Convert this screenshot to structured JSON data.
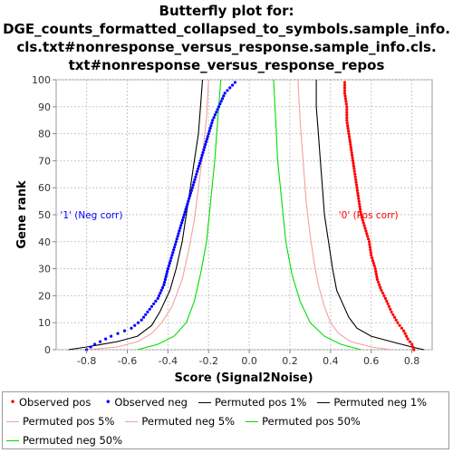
{
  "chart_data": {
    "type": "scatter",
    "title": [
      "Butterfly plot for:",
      "DGE_counts_formatted_collapsed_to_symbols.sample_info.",
      "cls.txt#nonresponse_versus_response.sample_info.cls.",
      "txt#nonresponse_versus_response_repos"
    ],
    "xlabel": "Score (Signal2Noise)",
    "ylabel": "Gene rank",
    "xlim": [
      -0.95,
      0.9
    ],
    "ylim": [
      0,
      100
    ],
    "x_ticks": [
      "-0.8",
      "-0.6",
      "-0.4",
      "-0.2",
      "0.0",
      "0.2",
      "0.4",
      "0.6",
      "0.8"
    ],
    "x_tick_values": [
      -0.8,
      -0.6,
      -0.4,
      -0.2,
      0.0,
      0.2,
      0.4,
      0.6,
      0.8
    ],
    "y_ticks": [
      "0",
      "10",
      "20",
      "30",
      "40",
      "50",
      "60",
      "70",
      "80",
      "90",
      "100"
    ],
    "y_tick_values": [
      0,
      10,
      20,
      30,
      40,
      50,
      60,
      70,
      80,
      90,
      100
    ],
    "grid": true,
    "annotations": [
      {
        "text": "'1' (Neg corr)",
        "x": -0.93,
        "y": 50,
        "color": "#0000ff"
      },
      {
        "text": "'0' (Pos corr)",
        "x": 0.44,
        "y": 50,
        "color": "#ff0000"
      }
    ],
    "series": [
      {
        "name": "Observed pos",
        "kind": "points",
        "color": "#ff0000",
        "points": [
          [
            0.81,
            0
          ],
          [
            0.8,
            2
          ],
          [
            0.78,
            4
          ],
          [
            0.76,
            7
          ],
          [
            0.73,
            10
          ],
          [
            0.7,
            14
          ],
          [
            0.67,
            19
          ],
          [
            0.65,
            22
          ],
          [
            0.63,
            26
          ],
          [
            0.62,
            30
          ],
          [
            0.6,
            35
          ],
          [
            0.59,
            40
          ],
          [
            0.57,
            45
          ],
          [
            0.55,
            50
          ],
          [
            0.54,
            55
          ],
          [
            0.53,
            60
          ],
          [
            0.52,
            65
          ],
          [
            0.51,
            70
          ],
          [
            0.5,
            75
          ],
          [
            0.49,
            80
          ],
          [
            0.48,
            85
          ],
          [
            0.48,
            90
          ],
          [
            0.47,
            95
          ],
          [
            0.47,
            99
          ]
        ]
      },
      {
        "name": "Observed neg",
        "kind": "points",
        "color": "#0000ff",
        "points": [
          [
            -0.8,
            0
          ],
          [
            -0.76,
            2
          ],
          [
            -0.68,
            5
          ],
          [
            -0.58,
            8
          ],
          [
            -0.53,
            11
          ],
          [
            -0.49,
            15
          ],
          [
            -0.45,
            19
          ],
          [
            -0.42,
            24
          ],
          [
            -0.4,
            30
          ],
          [
            -0.38,
            35
          ],
          [
            -0.36,
            40
          ],
          [
            -0.34,
            45
          ],
          [
            -0.32,
            50
          ],
          [
            -0.3,
            55
          ],
          [
            -0.28,
            60
          ],
          [
            -0.26,
            65
          ],
          [
            -0.24,
            70
          ],
          [
            -0.22,
            75
          ],
          [
            -0.2,
            80
          ],
          [
            -0.18,
            85
          ],
          [
            -0.15,
            90
          ],
          [
            -0.12,
            95
          ],
          [
            -0.07,
            99
          ]
        ]
      },
      {
        "name": "Permuted pos 1%",
        "kind": "line",
        "color": "#000000",
        "points": [
          [
            0.86,
            0
          ],
          [
            0.8,
            1
          ],
          [
            0.7,
            3
          ],
          [
            0.6,
            5
          ],
          [
            0.53,
            8
          ],
          [
            0.49,
            12
          ],
          [
            0.46,
            17
          ],
          [
            0.43,
            22
          ],
          [
            0.41,
            30
          ],
          [
            0.39,
            40
          ],
          [
            0.37,
            50
          ],
          [
            0.36,
            60
          ],
          [
            0.35,
            70
          ],
          [
            0.34,
            80
          ],
          [
            0.33,
            90
          ],
          [
            0.33,
            100
          ]
        ]
      },
      {
        "name": "Permuted neg 1%",
        "kind": "line",
        "color": "#000000",
        "points": [
          [
            -0.89,
            0
          ],
          [
            -0.8,
            1
          ],
          [
            -0.65,
            3
          ],
          [
            -0.55,
            5
          ],
          [
            -0.48,
            9
          ],
          [
            -0.44,
            14
          ],
          [
            -0.39,
            22
          ],
          [
            -0.36,
            30
          ],
          [
            -0.33,
            40
          ],
          [
            -0.31,
            50
          ],
          [
            -0.29,
            60
          ],
          [
            -0.27,
            70
          ],
          [
            -0.25,
            80
          ],
          [
            -0.24,
            90
          ],
          [
            -0.23,
            100
          ]
        ]
      },
      {
        "name": "Permuted pos 5%",
        "kind": "line",
        "color": "#f4a0a0",
        "points": [
          [
            0.7,
            0
          ],
          [
            0.6,
            1
          ],
          [
            0.5,
            3
          ],
          [
            0.44,
            6
          ],
          [
            0.4,
            10
          ],
          [
            0.37,
            16
          ],
          [
            0.34,
            24
          ],
          [
            0.32,
            32
          ],
          [
            0.3,
            42
          ],
          [
            0.28,
            55
          ],
          [
            0.27,
            65
          ],
          [
            0.26,
            75
          ],
          [
            0.25,
            85
          ],
          [
            0.24,
            100
          ]
        ]
      },
      {
        "name": "Permuted neg 5%",
        "kind": "line",
        "color": "#f4a0a0",
        "points": [
          [
            -0.8,
            0
          ],
          [
            -0.65,
            1
          ],
          [
            -0.55,
            3
          ],
          [
            -0.48,
            6
          ],
          [
            -0.43,
            10
          ],
          [
            -0.38,
            16
          ],
          [
            -0.33,
            26
          ],
          [
            -0.3,
            36
          ],
          [
            -0.27,
            48
          ],
          [
            -0.25,
            60
          ],
          [
            -0.23,
            72
          ],
          [
            -0.21,
            86
          ],
          [
            -0.2,
            100
          ]
        ]
      },
      {
        "name": "Permuted pos 50%",
        "kind": "line",
        "color": "#00dd00",
        "points": [
          [
            0.55,
            0
          ],
          [
            0.45,
            2
          ],
          [
            0.37,
            5
          ],
          [
            0.3,
            10
          ],
          [
            0.25,
            18
          ],
          [
            0.21,
            28
          ],
          [
            0.18,
            40
          ],
          [
            0.16,
            55
          ],
          [
            0.14,
            70
          ],
          [
            0.13,
            85
          ],
          [
            0.12,
            100
          ]
        ]
      },
      {
        "name": "Permuted neg 50%",
        "kind": "line",
        "color": "#00dd00",
        "points": [
          [
            -0.55,
            0
          ],
          [
            -0.45,
            2
          ],
          [
            -0.37,
            5
          ],
          [
            -0.31,
            10
          ],
          [
            -0.27,
            18
          ],
          [
            -0.24,
            28
          ],
          [
            -0.21,
            40
          ],
          [
            -0.19,
            55
          ],
          [
            -0.17,
            70
          ],
          [
            -0.155,
            85
          ],
          [
            -0.14,
            100
          ]
        ]
      }
    ]
  },
  "legend": [
    {
      "label": "Observed pos",
      "kind": "dot",
      "color": "#ff0000"
    },
    {
      "label": "Observed neg",
      "kind": "dot",
      "color": "#0000ff"
    },
    {
      "label": "Permuted pos 1%",
      "kind": "line",
      "color": "#000000"
    },
    {
      "label": "Permuted neg 1%",
      "kind": "line",
      "color": "#000000"
    },
    {
      "label": "Permuted pos 5%",
      "kind": "line",
      "color": "#f4a0a0"
    },
    {
      "label": "Permuted neg 5%",
      "kind": "line",
      "color": "#f4a0a0"
    },
    {
      "label": "Permuted pos 50%",
      "kind": "line",
      "color": "#00dd00"
    },
    {
      "label": "Permuted neg 50%",
      "kind": "line",
      "color": "#00dd00"
    }
  ]
}
